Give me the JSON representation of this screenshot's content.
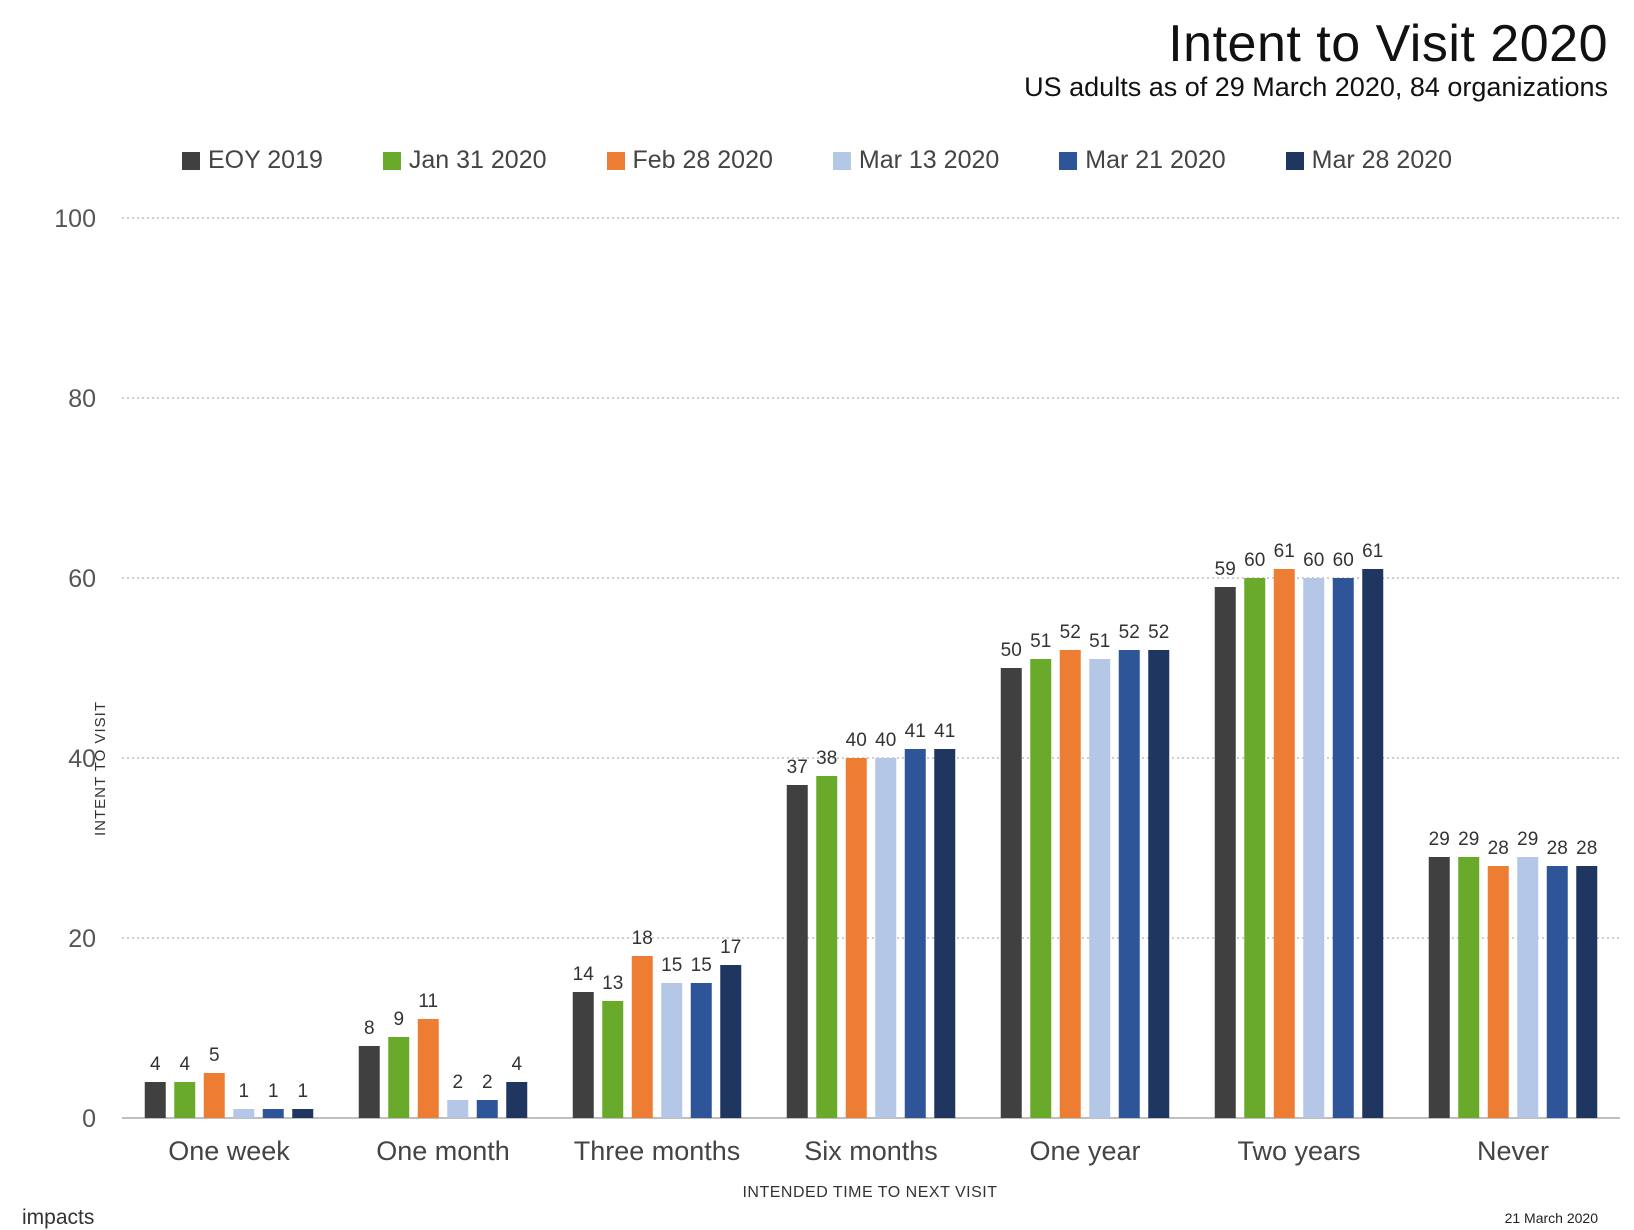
{
  "chart_data": {
    "type": "bar",
    "title": "Intent to Visit 2020",
    "subtitle": "US adults as of 29 March 2020, 84 organizations",
    "xlabel": "INTENDED TIME TO NEXT VISIT",
    "ylabel": "INTENT TO VISIT",
    "ylim": [
      0,
      100
    ],
    "yticks": [
      0,
      20,
      40,
      60,
      80,
      100
    ],
    "grid": true,
    "legend_position": "top",
    "categories": [
      "One week",
      "One month",
      "Three months",
      "Six months",
      "One year",
      "Two years",
      "Never"
    ],
    "series": [
      {
        "name": "EOY 2019",
        "color": "#404040",
        "values": [
          4,
          8,
          14,
          37,
          50,
          59,
          29
        ]
      },
      {
        "name": "Jan 31 2020",
        "color": "#6aaa2a",
        "values": [
          4,
          9,
          13,
          38,
          51,
          60,
          29
        ]
      },
      {
        "name": "Feb 28 2020",
        "color": "#ee7d34",
        "values": [
          5,
          11,
          18,
          40,
          52,
          61,
          28
        ]
      },
      {
        "name": "Mar 13 2020",
        "color": "#b4c7e7",
        "values": [
          1,
          2,
          15,
          40,
          51,
          60,
          29
        ]
      },
      {
        "name": "Mar 21 2020",
        "color": "#2e5597",
        "values": [
          1,
          2,
          15,
          41,
          52,
          60,
          28
        ]
      },
      {
        "name": "Mar 28 2020",
        "color": "#1f3760",
        "values": [
          1,
          4,
          17,
          41,
          52,
          61,
          28
        ]
      }
    ]
  },
  "footer": {
    "logo_text": "impacts",
    "date": "21 March 2020"
  }
}
